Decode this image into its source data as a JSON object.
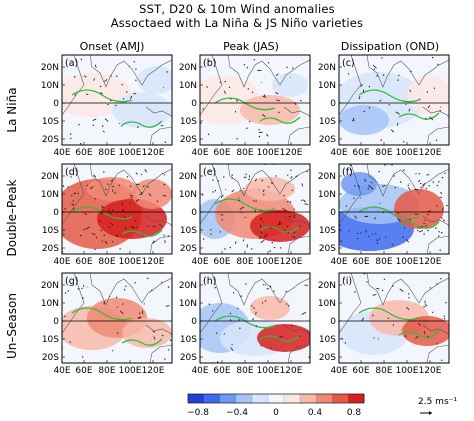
{
  "title_line1": "SST, D20 & 10m Wind anomalies",
  "title_line2": "Assoctaed with La Niña & JS Niño varieties",
  "columns": [
    "Onset (AMJ)",
    "Peak (JAS)",
    "Dissipation (OND)"
  ],
  "rows": [
    "La Niña",
    "Double–Peak",
    "Un–Season"
  ],
  "panel_labels": [
    "(a)",
    "(b)",
    "(c)",
    "(d)",
    "(e)",
    "(f)",
    "(g)",
    "(h)",
    "(i)"
  ],
  "lat_ticks": [
    "20N",
    "10N",
    "0",
    "10S",
    "20S"
  ],
  "lon_ticks": [
    "40E",
    "60E",
    "80E",
    "100E",
    "120E"
  ],
  "colorbar": {
    "ticks": [
      "−0.8",
      "−0.4",
      "0",
      "0.4",
      "0.8"
    ],
    "colors": [
      "#1f3fd9",
      "#3d6bf0",
      "#6e99f5",
      "#a6c4f7",
      "#d6e5fb",
      "#f3f7fd",
      "#fde8e4",
      "#f8b9aa",
      "#f08a74",
      "#e45a45",
      "#d81e1e"
    ]
  },
  "reference_vector": "2.5 ms⁻¹"
}
